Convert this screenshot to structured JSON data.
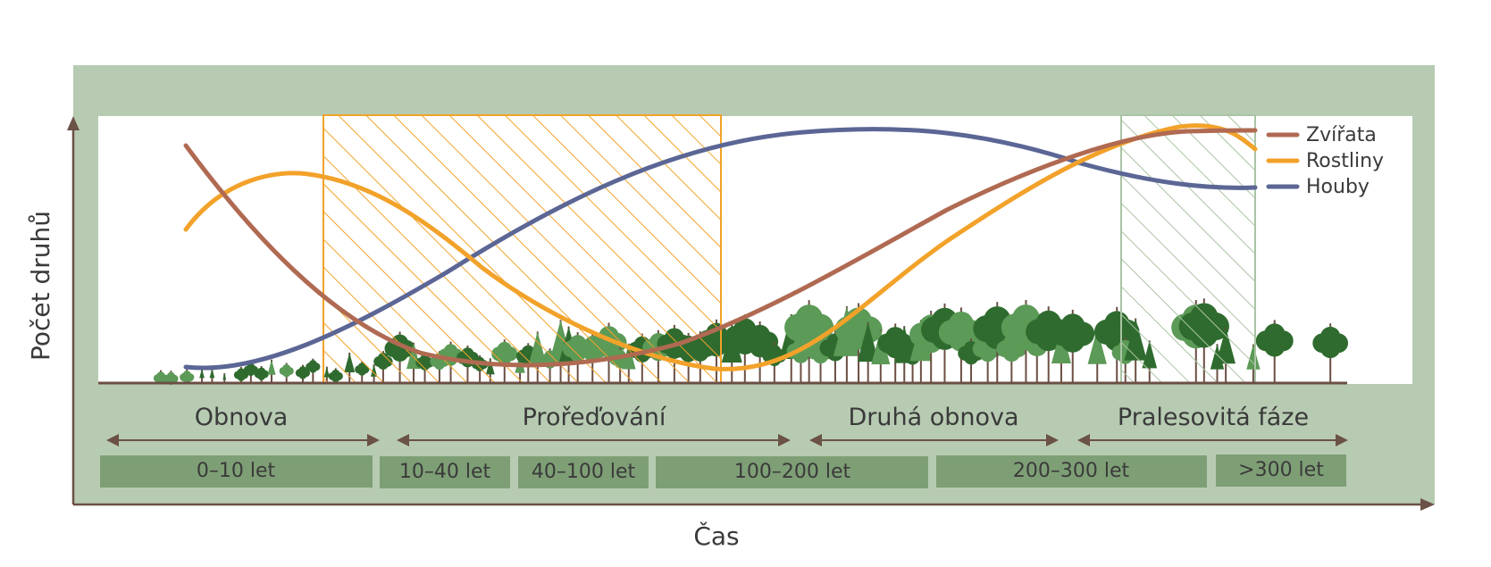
{
  "axes": {
    "y_label": "Počet druhů",
    "x_label": "Čas"
  },
  "legend": [
    {
      "label": "Zvířata",
      "color": "#b06a52"
    },
    {
      "label": "Rostliny",
      "color": "#f2a22a"
    },
    {
      "label": "Houby",
      "color": "#5b6695"
    }
  ],
  "phases": [
    {
      "label": "Obnova"
    },
    {
      "label": "Prořeďování"
    },
    {
      "label": "Druhá obnova"
    },
    {
      "label": "Pralesovitá fáze"
    }
  ],
  "age_classes": [
    {
      "label": "0–10 let"
    },
    {
      "label": "10–40 let"
    },
    {
      "label": "40–100 let"
    },
    {
      "label": "100–200 let"
    },
    {
      "label": "200–300 let"
    },
    {
      "label": ">300 let"
    }
  ],
  "colors": {
    "frame": "#b7cbb2",
    "plot_bg": "#ffffff",
    "age_box": "#7e9f75",
    "axis": "#6b5146",
    "hatch_orange": "#f2a22a",
    "hatch_green": "#a9c4a3",
    "tree_dark": "#2f6b2e",
    "tree_light": "#5c9a57",
    "trunk": "#6b4f44"
  }
}
